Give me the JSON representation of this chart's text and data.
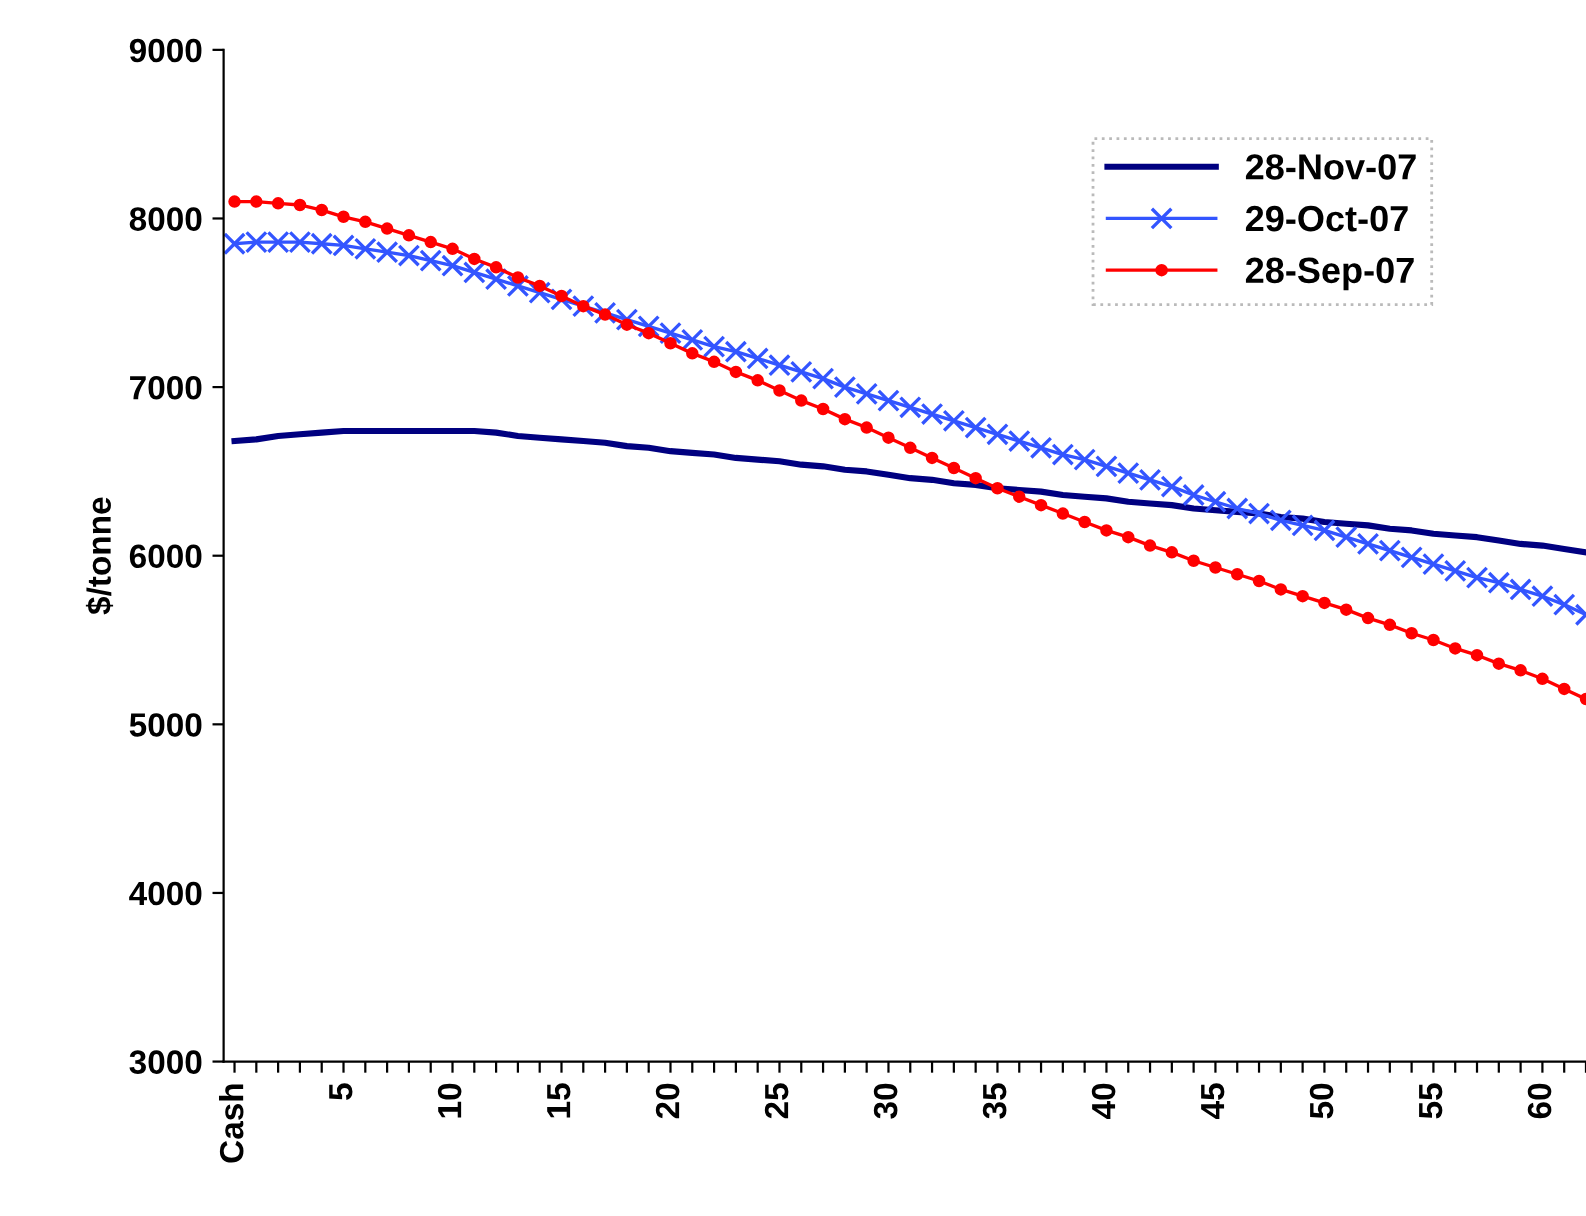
{
  "chart_data": {
    "type": "line",
    "ylabel": "$/tonne",
    "categories": [
      "Cash",
      null,
      null,
      null,
      null,
      "5",
      null,
      null,
      null,
      null,
      "10",
      null,
      null,
      null,
      null,
      "15",
      null,
      null,
      null,
      null,
      "20",
      null,
      null,
      null,
      null,
      "25",
      null,
      null,
      null,
      null,
      "30",
      null,
      null,
      null,
      null,
      "35",
      null,
      null,
      null,
      null,
      "40",
      null,
      null,
      null,
      null,
      "45",
      null,
      null,
      null,
      null,
      "50",
      null,
      null,
      null,
      null,
      "55",
      null,
      null,
      null,
      null,
      "60",
      null,
      null
    ],
    "ylim": [
      3000,
      9000
    ],
    "yticks": [
      3000,
      4000,
      5000,
      6000,
      7000,
      8000,
      9000
    ],
    "grid": false,
    "legend": "top right",
    "line_style": "solid",
    "series": [
      {
        "name": "28-Nov-07",
        "color": "#000080",
        "marker": "none",
        "values": [
          6680,
          6690,
          6710,
          6720,
          6730,
          6740,
          6740,
          6740,
          6740,
          6740,
          6740,
          6740,
          6730,
          6710,
          6700,
          6690,
          6680,
          6670,
          6650,
          6640,
          6620,
          6610,
          6600,
          6580,
          6570,
          6560,
          6540,
          6530,
          6510,
          6500,
          6480,
          6460,
          6450,
          6430,
          6420,
          6400,
          6390,
          6380,
          6360,
          6350,
          6340,
          6320,
          6310,
          6300,
          6280,
          6270,
          6260,
          6250,
          6230,
          6220,
          6200,
          6190,
          6180,
          6160,
          6150,
          6130,
          6120,
          6110,
          6090,
          6070,
          6060,
          6040,
          6020
        ]
      },
      {
        "name": "29-Oct-07",
        "color": "#3355ff",
        "marker": "cross",
        "values": [
          7850,
          7860,
          7860,
          7860,
          7850,
          7840,
          7820,
          7800,
          7780,
          7750,
          7720,
          7680,
          7640,
          7600,
          7560,
          7520,
          7480,
          7440,
          7400,
          7360,
          7320,
          7280,
          7240,
          7210,
          7170,
          7130,
          7090,
          7050,
          7000,
          6960,
          6920,
          6880,
          6840,
          6800,
          6760,
          6720,
          6680,
          6640,
          6600,
          6570,
          6530,
          6490,
          6450,
          6410,
          6360,
          6320,
          6280,
          6250,
          6210,
          6180,
          6150,
          6110,
          6070,
          6030,
          5990,
          5950,
          5910,
          5870,
          5840,
          5800,
          5760,
          5710,
          5650
        ]
      },
      {
        "name": "28-Sep-07",
        "color": "#ff0000",
        "marker": "circle",
        "values": [
          8100,
          8100,
          8090,
          8080,
          8050,
          8010,
          7980,
          7940,
          7900,
          7860,
          7820,
          7760,
          7710,
          7650,
          7600,
          7540,
          7480,
          7430,
          7370,
          7320,
          7260,
          7200,
          7150,
          7090,
          7040,
          6980,
          6920,
          6870,
          6810,
          6760,
          6700,
          6640,
          6580,
          6520,
          6460,
          6400,
          6350,
          6300,
          6250,
          6200,
          6150,
          6110,
          6060,
          6020,
          5970,
          5930,
          5890,
          5850,
          5800,
          5760,
          5720,
          5680,
          5630,
          5590,
          5540,
          5500,
          5450,
          5410,
          5360,
          5320,
          5270,
          5210,
          5150
        ]
      }
    ]
  }
}
